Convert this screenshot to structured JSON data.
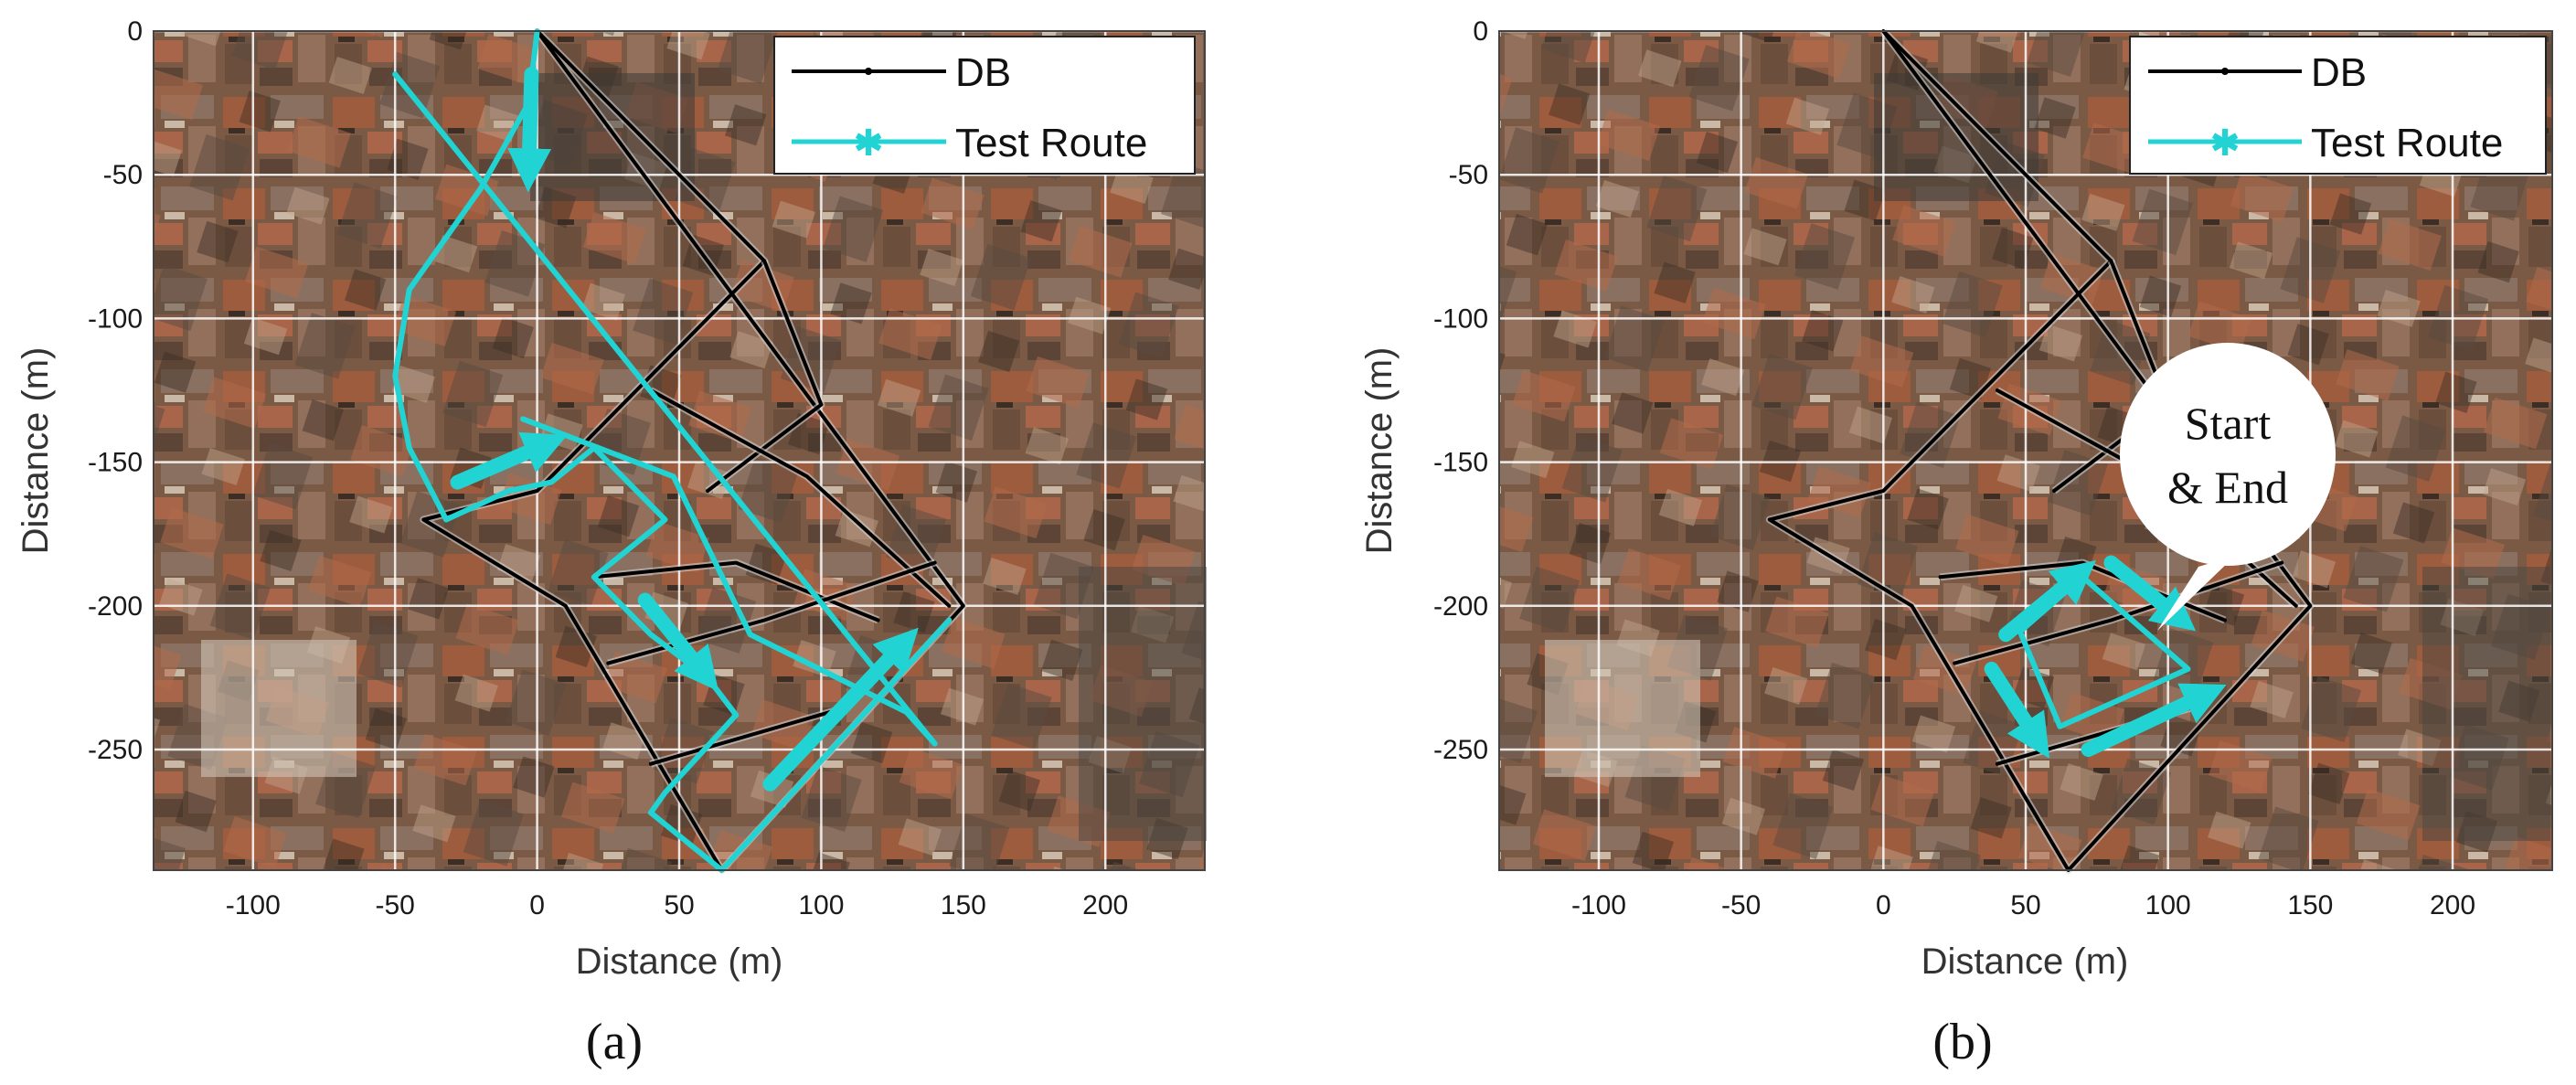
{
  "chart_data": [
    {
      "type": "line",
      "panel_label": "(a)",
      "xlabel": "Distance (m)",
      "ylabel": "Distance (m)",
      "xlim": [
        -135,
        235
      ],
      "ylim": [
        -292,
        0
      ],
      "x_ticks": [
        "-100",
        "-50",
        "0",
        "50",
        "100",
        "150",
        "200"
      ],
      "y_ticks": [
        "0",
        "-50",
        "-100",
        "-150",
        "-200",
        "-250"
      ],
      "grid": true,
      "legend_position": "top-right",
      "background": "aerial satellite image of dense urban blocks",
      "series": [
        {
          "name": "DB",
          "color": "#000000",
          "paths": [
            [
              [
                0,
                0
              ],
              [
                80,
                -80
              ],
              [
                0,
                -160
              ],
              [
                -40,
                -170
              ],
              [
                10,
                -200
              ],
              [
                65,
                -292
              ],
              [
                150,
                -200
              ],
              [
                0,
                0
              ]
            ],
            [
              [
                80,
                -80
              ],
              [
                100,
                -130
              ],
              [
                60,
                -160
              ]
            ],
            [
              [
                40,
                -125
              ],
              [
                95,
                -155
              ],
              [
                145,
                -200
              ]
            ],
            [
              [
                20,
                -190
              ],
              [
                70,
                -185
              ],
              [
                120,
                -205
              ]
            ],
            [
              [
                25,
                -220
              ],
              [
                80,
                -205
              ],
              [
                140,
                -185
              ]
            ],
            [
              [
                40,
                -255
              ],
              [
                110,
                -235
              ]
            ]
          ]
        },
        {
          "name": "Test Route",
          "color": "#22d3d3",
          "paths": [
            [
              [
                0,
                0
              ],
              [
                -3,
                -25
              ],
              [
                -20,
                -55
              ],
              [
                -45,
                -90
              ],
              [
                -50,
                -120
              ],
              [
                -45,
                -145
              ],
              [
                -32,
                -170
              ],
              [
                -10,
                -160
              ],
              [
                5,
                -157
              ],
              [
                20,
                -145
              ],
              [
                35,
                -160
              ],
              [
                45,
                -170
              ],
              [
                20,
                -190
              ],
              [
                40,
                -210
              ],
              [
                60,
                -225
              ],
              [
                70,
                -238
              ],
              [
                45,
                -265
              ],
              [
                40,
                -272
              ],
              [
                65,
                -292
              ],
              [
                145,
                -205
              ]
            ],
            [
              [
                -5,
                -135
              ],
              [
                48,
                -155
              ],
              [
                75,
                -210
              ],
              [
                130,
                -237
              ],
              [
                140,
                -248
              ],
              [
                -50,
                -15
              ]
            ]
          ]
        }
      ],
      "arrows": [
        {
          "from": [
            -2,
            -15
          ],
          "to": [
            -3,
            -50
          ]
        },
        {
          "from": [
            -28,
            -157
          ],
          "to": [
            5,
            -143
          ]
        },
        {
          "from": [
            38,
            -198
          ],
          "to": [
            60,
            -225
          ]
        },
        {
          "from": [
            82,
            -262
          ],
          "to": [
            130,
            -212
          ]
        }
      ]
    },
    {
      "type": "line",
      "panel_label": "(b)",
      "xlabel": "Distance (m)",
      "ylabel": "Distance (m)",
      "xlim": [
        -135,
        235
      ],
      "ylim": [
        -292,
        0
      ],
      "x_ticks": [
        "-100",
        "-50",
        "0",
        "50",
        "100",
        "150",
        "200"
      ],
      "y_ticks": [
        "0",
        "-50",
        "-100",
        "-150",
        "-200",
        "-250"
      ],
      "grid": true,
      "legend_position": "top-right",
      "annotation": [
        "Start",
        "& End"
      ],
      "background": "aerial satellite image of dense urban blocks",
      "series": [
        {
          "name": "DB",
          "color": "#000000",
          "paths": [
            [
              [
                0,
                0
              ],
              [
                80,
                -80
              ],
              [
                0,
                -160
              ],
              [
                -40,
                -170
              ],
              [
                10,
                -200
              ],
              [
                65,
                -292
              ],
              [
                150,
                -200
              ],
              [
                0,
                0
              ]
            ],
            [
              [
                80,
                -80
              ],
              [
                100,
                -130
              ],
              [
                60,
                -160
              ]
            ],
            [
              [
                40,
                -125
              ],
              [
                95,
                -155
              ],
              [
                145,
                -200
              ]
            ],
            [
              [
                20,
                -190
              ],
              [
                70,
                -185
              ],
              [
                120,
                -205
              ]
            ],
            [
              [
                25,
                -220
              ],
              [
                80,
                -205
              ],
              [
                140,
                -185
              ]
            ],
            [
              [
                40,
                -255
              ],
              [
                110,
                -235
              ]
            ]
          ]
        },
        {
          "name": "Test Route",
          "color": "#22d3d3",
          "paths": [
            [
              [
                48,
                -209
              ],
              [
                70,
                -190
              ],
              [
                107,
                -222
              ],
              [
                62,
                -242
              ],
              [
                48,
                -209
              ]
            ]
          ]
        }
      ],
      "arrows": [
        {
          "from": [
            43,
            -210
          ],
          "to": [
            70,
            -188
          ]
        },
        {
          "from": [
            80,
            -185
          ],
          "to": [
            105,
            -205
          ]
        },
        {
          "from": [
            72,
            -250
          ],
          "to": [
            115,
            -230
          ]
        },
        {
          "from": [
            38,
            -222
          ],
          "to": [
            55,
            -248
          ]
        }
      ]
    }
  ],
  "legend": {
    "db_label": "DB",
    "route_label": "Test Route"
  },
  "captions": {
    "a": "(a)",
    "b": "(b)"
  },
  "colors": {
    "route": "#22d3d3",
    "db": "#000000",
    "grid": "#ffffff",
    "map_base": "#7a5a44"
  }
}
